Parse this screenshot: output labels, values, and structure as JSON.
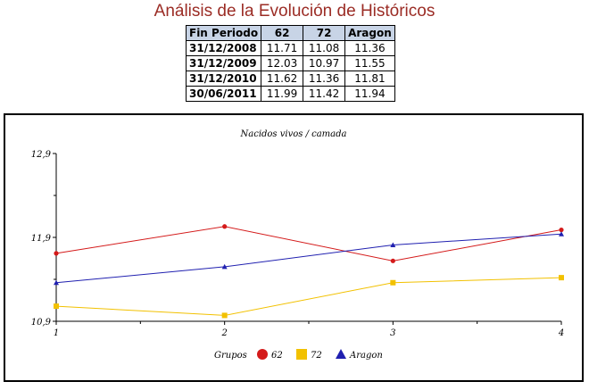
{
  "page": {
    "title": "Análisis de la Evolución de Históricos"
  },
  "table": {
    "headers": [
      "Fin Periodo",
      "62",
      "72",
      "Aragon"
    ],
    "rows": [
      [
        "31/12/2008",
        "11.71",
        "11.08",
        "11.36"
      ],
      [
        "31/12/2009",
        "12.03",
        "10.97",
        "11.55"
      ],
      [
        "31/12/2010",
        "11.62",
        "11.36",
        "11.81"
      ],
      [
        "30/06/2011",
        "11.99",
        "11.42",
        "11.94"
      ]
    ]
  },
  "colors": {
    "title": "#9b2c25",
    "header_bg": "#c8d4e6",
    "series_62": "#d41a1a",
    "series_72": "#f2c100",
    "series_aragon": "#2020b0"
  },
  "chart_data": {
    "type": "line",
    "title": "Nacidos vivos / camada",
    "x": [
      1,
      2,
      3,
      4
    ],
    "x_tick_labels": [
      "1",
      "2",
      "3",
      "4"
    ],
    "y_tick_labels": [
      "12,9",
      "11,9",
      "10,9"
    ],
    "ylim": [
      10.9,
      12.9
    ],
    "legend_title": "Grupos",
    "legend_position": "bottom",
    "series": [
      {
        "name": "62",
        "values": [
          11.71,
          12.03,
          11.62,
          11.99
        ],
        "marker": "circle",
        "color": "#d41a1a"
      },
      {
        "name": "72",
        "values": [
          11.08,
          10.97,
          11.36,
          11.42
        ],
        "marker": "square",
        "color": "#f2c100"
      },
      {
        "name": "Aragon",
        "values": [
          11.36,
          11.55,
          11.81,
          11.94
        ],
        "marker": "triangle",
        "color": "#2020b0"
      }
    ]
  }
}
